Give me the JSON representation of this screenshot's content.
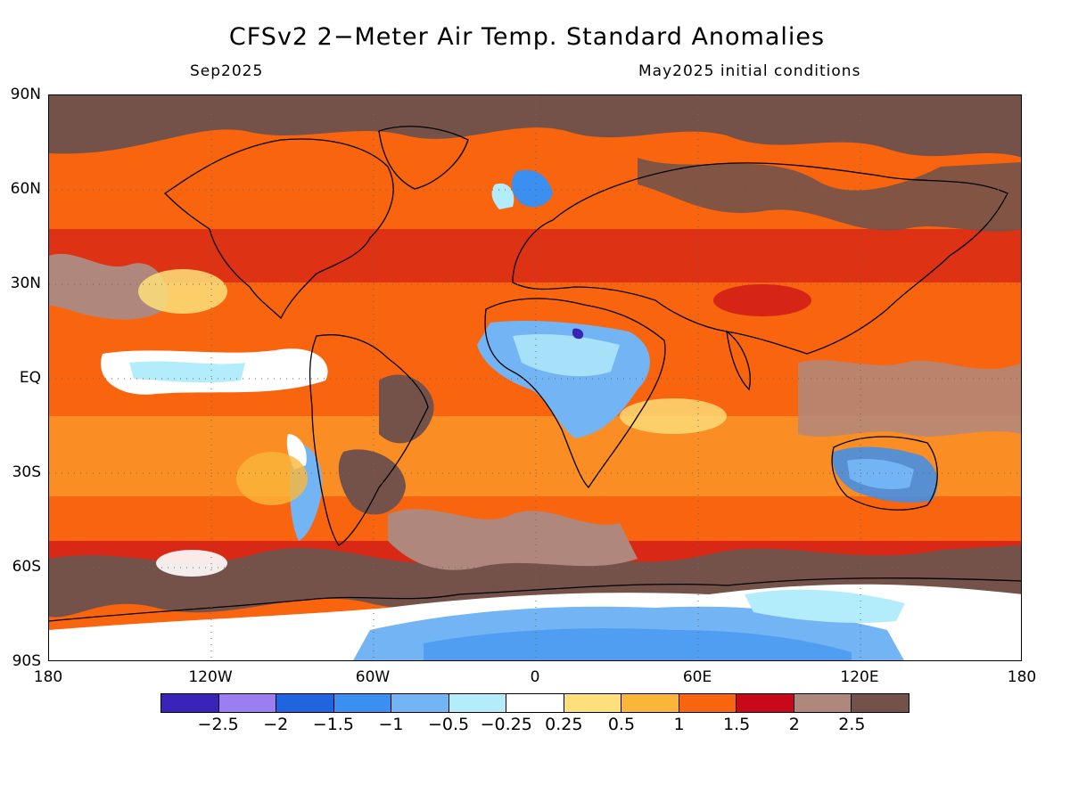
{
  "title": "CFSv2 2−Meter Air Temp. Standard Anomalies",
  "valid_month": "Sep2025",
  "init_conditions": "May2025 initial conditions",
  "lat_labels": [
    "90N",
    "60N",
    "30N",
    "EQ",
    "30S",
    "60S",
    "90S"
  ],
  "lon_labels": [
    "180",
    "120W",
    "60W",
    "0",
    "60E",
    "120E",
    "180"
  ],
  "colorbar": {
    "colors": [
      "#3a23b8",
      "#9a7ef2",
      "#1f65e0",
      "#3b8ff0",
      "#72b4f4",
      "#b3ecfa",
      "#ffffff",
      "#fde07a",
      "#fbb63a",
      "#f9640f",
      "#c8091a",
      "#b0877c",
      "#74524a"
    ],
    "labels": [
      "−2.5",
      "−2",
      "−1.5",
      "−1",
      "−0.5",
      "−0.25",
      "0.25",
      "0.5",
      "1",
      "1.5",
      "2",
      "2.5"
    ]
  },
  "map": {
    "projection": "equirectangular",
    "lon_range": [
      -180,
      180
    ],
    "lat_range": [
      -90,
      90
    ],
    "grid": "dotted every 60° lon / 30° lat",
    "coastlines": true
  }
}
